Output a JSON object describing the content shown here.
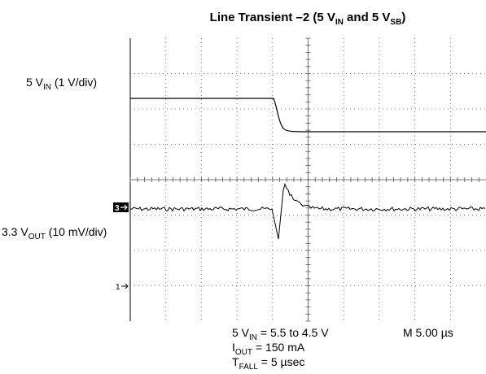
{
  "title": [
    "Line Transient –2 (5 V",
    "IN",
    " and 5 V",
    "SB",
    ")"
  ],
  "labels": {
    "vin": [
      "5 V",
      "IN",
      " (1 V/div)"
    ],
    "vout": [
      "3.3 V",
      "OUT",
      " (10 mV/div)"
    ]
  },
  "markers": [
    "3",
    "1"
  ],
  "notes": [
    [
      "5 V",
      "IN",
      " = 5.5 to 4.5 V"
    ],
    [
      "I",
      "OUT",
      " = 150 mA"
    ],
    [
      "T",
      "FALL",
      " = 5 µsec"
    ]
  ],
  "timebase": "M 5.00 µs"
}
